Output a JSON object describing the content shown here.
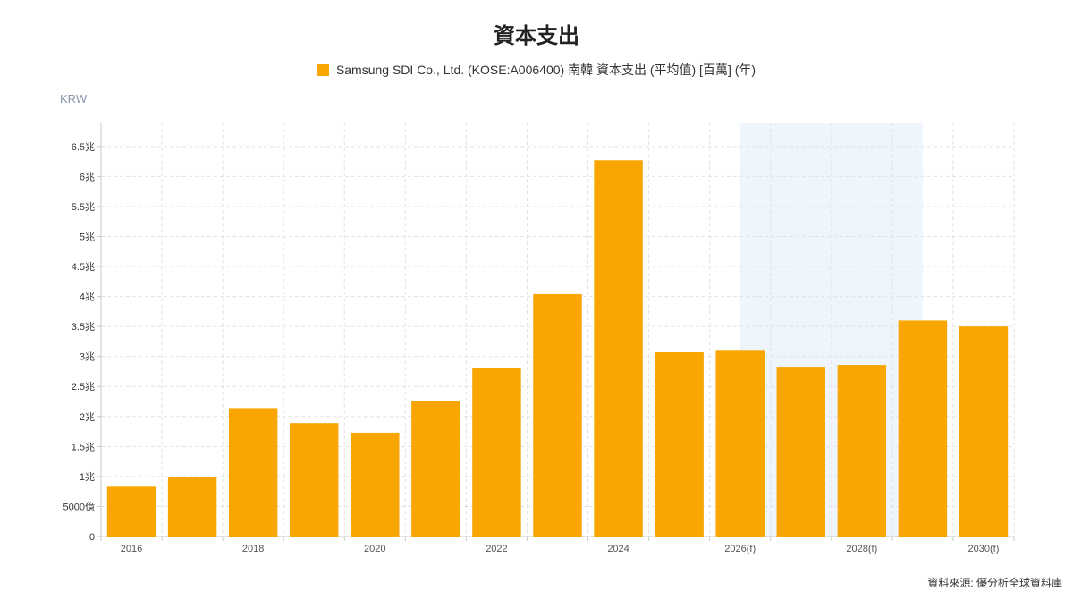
{
  "chart_data": {
    "type": "bar",
    "title": "資本支出",
    "unit_label": "KRW",
    "source": "資料來源: 優分析全球資料庫",
    "categories": [
      "2016",
      "2017",
      "2018",
      "2019",
      "2020",
      "2021",
      "2022",
      "2023",
      "2024",
      "2025",
      "2026(f)",
      "2027(f)",
      "2028(f)",
      "2029(f)",
      "2030(f)"
    ],
    "x_tick_labels": [
      "2016",
      "",
      "2018",
      "",
      "2020",
      "",
      "2022",
      "",
      "2024",
      "",
      "2026(f)",
      "",
      "2028(f)",
      "",
      "2030(f)"
    ],
    "series": [
      {
        "name": "Samsung SDI Co., Ltd. (KOSE:A006400) 南韓 資本支出 (平均值) [百萬] (年)",
        "color": "#F9A602",
        "values": [
          830000,
          990000,
          2140000,
          1890000,
          1730000,
          2250000,
          2810000,
          4040000,
          6270000,
          3070000,
          3110000,
          2830000,
          2860000,
          3600000,
          3500000
        ]
      }
    ],
    "ylim": [
      0,
      6900000
    ],
    "y_ticks": [
      {
        "value": 0,
        "label": "0"
      },
      {
        "value": 500000,
        "label": "5000億"
      },
      {
        "value": 1000000,
        "label": "1兆"
      },
      {
        "value": 1500000,
        "label": "1.5兆"
      },
      {
        "value": 2000000,
        "label": "2兆"
      },
      {
        "value": 2500000,
        "label": "2.5兆"
      },
      {
        "value": 3000000,
        "label": "3兆"
      },
      {
        "value": 3500000,
        "label": "3.5兆"
      },
      {
        "value": 4000000,
        "label": "4兆"
      },
      {
        "value": 4500000,
        "label": "4.5兆"
      },
      {
        "value": 5000000,
        "label": "5兆"
      },
      {
        "value": 5500000,
        "label": "5.5兆"
      },
      {
        "value": 6000000,
        "label": "6兆"
      },
      {
        "value": 6500000,
        "label": "6.5兆"
      }
    ],
    "forecast_band": {
      "from": "2026(f)",
      "to": "2029(f)",
      "color": "#EEF5FD"
    },
    "grid": true,
    "legend_position": "top-center"
  }
}
